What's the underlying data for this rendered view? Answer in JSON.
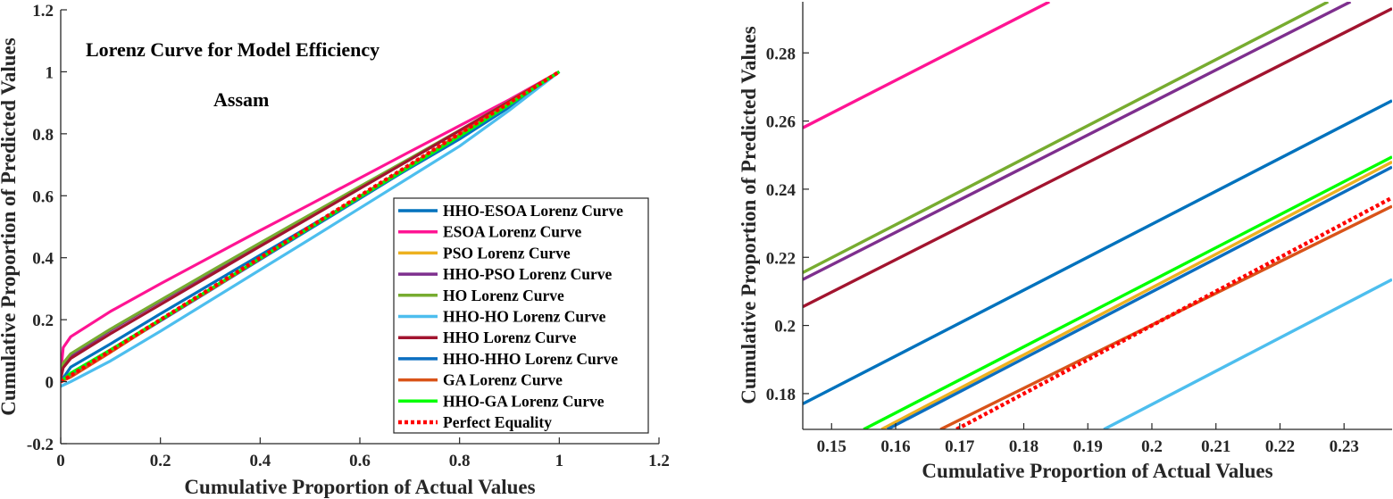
{
  "chart_data": [
    {
      "type": "line",
      "title": "Lorenz Curve for Model Efficiency",
      "subtitle": "Assam",
      "xlabel": "Cumulative Proportion of Actual Values",
      "ylabel": "Cumulative Proportion of Predicted Values",
      "xlim": [
        0,
        1.2
      ],
      "ylim": [
        -0.2,
        1.2
      ],
      "xticks": [
        "0",
        "0.2",
        "0.4",
        "0.6",
        "0.8",
        "1",
        "1.2"
      ],
      "yticks": [
        "-0.2",
        "0",
        "0.2",
        "0.4",
        "0.6",
        "0.8",
        "1",
        "1.2"
      ],
      "legend_position": "lower-right",
      "series": [
        {
          "name": "HHO-ESOA Lorenz Curve",
          "color": "#0072BD",
          "style": "solid",
          "x": [
            0,
            0.02,
            0.1,
            0.2,
            0.3,
            0.4,
            0.5,
            0.6,
            0.7,
            0.8,
            0.9,
            1
          ],
          "y": [
            0.0,
            0.047,
            0.122,
            0.219,
            0.314,
            0.408,
            0.502,
            0.595,
            0.689,
            0.783,
            0.886,
            1.0
          ]
        },
        {
          "name": "ESOA Lorenz Curve",
          "color": "#FF1493",
          "style": "solid",
          "x": [
            0,
            0.005,
            0.02,
            0.1,
            0.2,
            0.3,
            0.4,
            0.5,
            0.6,
            0.7,
            0.8,
            0.9,
            1
          ],
          "y": [
            0.03,
            0.11,
            0.145,
            0.227,
            0.316,
            0.402,
            0.488,
            0.572,
            0.657,
            0.742,
            0.826,
            0.91,
            1.0
          ]
        },
        {
          "name": "PSO Lorenz Curve",
          "color": "#EDB120",
          "style": "solid",
          "x": [
            0,
            0.02,
            0.1,
            0.2,
            0.3,
            0.4,
            0.5,
            0.6,
            0.7,
            0.8,
            0.9,
            1
          ],
          "y": [
            0.0,
            0.025,
            0.1,
            0.198,
            0.298,
            0.396,
            0.495,
            0.593,
            0.691,
            0.79,
            0.893,
            1.0
          ]
        },
        {
          "name": "HHO-PSO Lorenz Curve",
          "color": "#7E2F8E",
          "style": "solid",
          "x": [
            0,
            0.005,
            0.02,
            0.1,
            0.2,
            0.3,
            0.4,
            0.5,
            0.6,
            0.7,
            0.8,
            0.9,
            1
          ],
          "y": [
            0.02,
            0.055,
            0.085,
            0.166,
            0.26,
            0.353,
            0.445,
            0.537,
            0.628,
            0.719,
            0.81,
            0.904,
            1.0
          ]
        },
        {
          "name": "HO Lorenz Curve",
          "color": "#77AC30",
          "style": "solid",
          "x": [
            0,
            0.005,
            0.02,
            0.1,
            0.2,
            0.3,
            0.4,
            0.5,
            0.6,
            0.7,
            0.8,
            0.9,
            1
          ],
          "y": [
            0.025,
            0.06,
            0.09,
            0.17,
            0.263,
            0.356,
            0.448,
            0.539,
            0.63,
            0.72,
            0.811,
            0.905,
            1.0
          ]
        },
        {
          "name": "HHO-HO Lorenz Curve",
          "color": "#4DBEEE",
          "style": "solid",
          "x": [
            0,
            0.02,
            0.1,
            0.2,
            0.3,
            0.4,
            0.5,
            0.6,
            0.7,
            0.8,
            0.9,
            1
          ],
          "y": [
            -0.015,
            0.0,
            0.067,
            0.163,
            0.262,
            0.361,
            0.46,
            0.56,
            0.66,
            0.76,
            0.876,
            1.0
          ]
        },
        {
          "name": "HHO Lorenz Curve",
          "color": "#A2142F",
          "style": "solid",
          "x": [
            0,
            0.005,
            0.02,
            0.1,
            0.2,
            0.3,
            0.4,
            0.5,
            0.6,
            0.7,
            0.8,
            0.9,
            1
          ],
          "y": [
            0.01,
            0.045,
            0.075,
            0.155,
            0.249,
            0.343,
            0.437,
            0.53,
            0.623,
            0.716,
            0.81,
            0.904,
            1.0
          ]
        },
        {
          "name": "HHO-HHO Lorenz Curve",
          "color": "#0B6EC0",
          "style": "solid",
          "x": [
            0,
            0.02,
            0.1,
            0.2,
            0.3,
            0.4,
            0.5,
            0.6,
            0.7,
            0.8,
            0.9,
            1
          ],
          "y": [
            0.0,
            0.022,
            0.098,
            0.196,
            0.295,
            0.394,
            0.493,
            0.591,
            0.69,
            0.789,
            0.893,
            1.0
          ]
        },
        {
          "name": "GA Lorenz Curve",
          "color": "#D95319",
          "style": "solid",
          "x": [
            0,
            0.02,
            0.1,
            0.2,
            0.3,
            0.4,
            0.5,
            0.6,
            0.7,
            0.8,
            0.9,
            1
          ],
          "y": [
            0.0,
            0.015,
            0.095,
            0.198,
            0.296,
            0.397,
            0.498,
            0.598,
            0.698,
            0.798,
            0.899,
            1.0
          ]
        },
        {
          "name": "HHO-GA Lorenz Curve",
          "color": "#00FF00",
          "style": "solid",
          "x": [
            0,
            0.02,
            0.1,
            0.2,
            0.3,
            0.4,
            0.5,
            0.6,
            0.7,
            0.8,
            0.9,
            1
          ],
          "y": [
            0.0,
            0.028,
            0.103,
            0.2,
            0.299,
            0.398,
            0.497,
            0.596,
            0.694,
            0.792,
            0.895,
            1.0
          ]
        },
        {
          "name": "Perfect Equality",
          "color": "#FF0000",
          "style": "dotted",
          "x": [
            0,
            1
          ],
          "y": [
            0,
            1
          ]
        }
      ]
    },
    {
      "type": "line",
      "title": "",
      "xlabel": "Cumulative Proportion of Actual Values",
      "ylabel": "Cumulative Proportion of Predicted Values",
      "xlim": [
        0.1455,
        0.2375
      ],
      "ylim": [
        0.1695,
        0.295
      ],
      "xticks": [
        "0.15",
        "0.16",
        "0.17",
        "0.18",
        "0.19",
        "0.2",
        "0.21",
        "0.22",
        "0.23"
      ],
      "yticks": [
        "0.18",
        "0.2",
        "0.22",
        "0.24",
        "0.26",
        "0.28"
      ],
      "series": [
        {
          "name": "HHO-ESOA Lorenz Curve",
          "color": "#0072BD",
          "style": "solid",
          "x": [
            0.1455,
            0.2375
          ],
          "y": [
            0.177,
            0.266
          ]
        },
        {
          "name": "ESOA Lorenz Curve",
          "color": "#FF1493",
          "style": "solid",
          "x": [
            0.1455,
            0.184
          ],
          "y": [
            0.258,
            0.295
          ]
        },
        {
          "name": "PSO Lorenz Curve",
          "color": "#EDB120",
          "style": "solid",
          "x": [
            0.1578,
            0.2375
          ],
          "y": [
            0.1695,
            0.248
          ]
        },
        {
          "name": "HHO-PSO Lorenz Curve",
          "color": "#7E2F8E",
          "style": "solid",
          "x": [
            0.1455,
            0.231
          ],
          "y": [
            0.2135,
            0.295
          ]
        },
        {
          "name": "HO Lorenz Curve",
          "color": "#77AC30",
          "style": "solid",
          "x": [
            0.1455,
            0.2275
          ],
          "y": [
            0.2155,
            0.295
          ]
        },
        {
          "name": "HHO-HO Lorenz Curve",
          "color": "#4DBEEE",
          "style": "solid",
          "x": [
            0.1925,
            0.2375
          ],
          "y": [
            0.1695,
            0.2135
          ]
        },
        {
          "name": "HHO Lorenz Curve",
          "color": "#A2142F",
          "style": "solid",
          "x": [
            0.1455,
            0.2375
          ],
          "y": [
            0.2055,
            0.293
          ]
        },
        {
          "name": "HHO-HHO Lorenz Curve",
          "color": "#0B6EC0",
          "style": "solid",
          "x": [
            0.1587,
            0.2375
          ],
          "y": [
            0.1695,
            0.2465
          ]
        },
        {
          "name": "GA Lorenz Curve",
          "color": "#D95319",
          "style": "solid",
          "x": [
            0.167,
            0.2375
          ],
          "y": [
            0.1695,
            0.235
          ]
        },
        {
          "name": "HHO-GA Lorenz Curve",
          "color": "#00FF00",
          "style": "solid",
          "x": [
            0.155,
            0.2375
          ],
          "y": [
            0.1695,
            0.2495
          ]
        },
        {
          "name": "Perfect Equality",
          "color": "#FF0000",
          "style": "dotted",
          "x": [
            0.1695,
            0.2375
          ],
          "y": [
            0.1695,
            0.2375
          ]
        }
      ]
    }
  ]
}
